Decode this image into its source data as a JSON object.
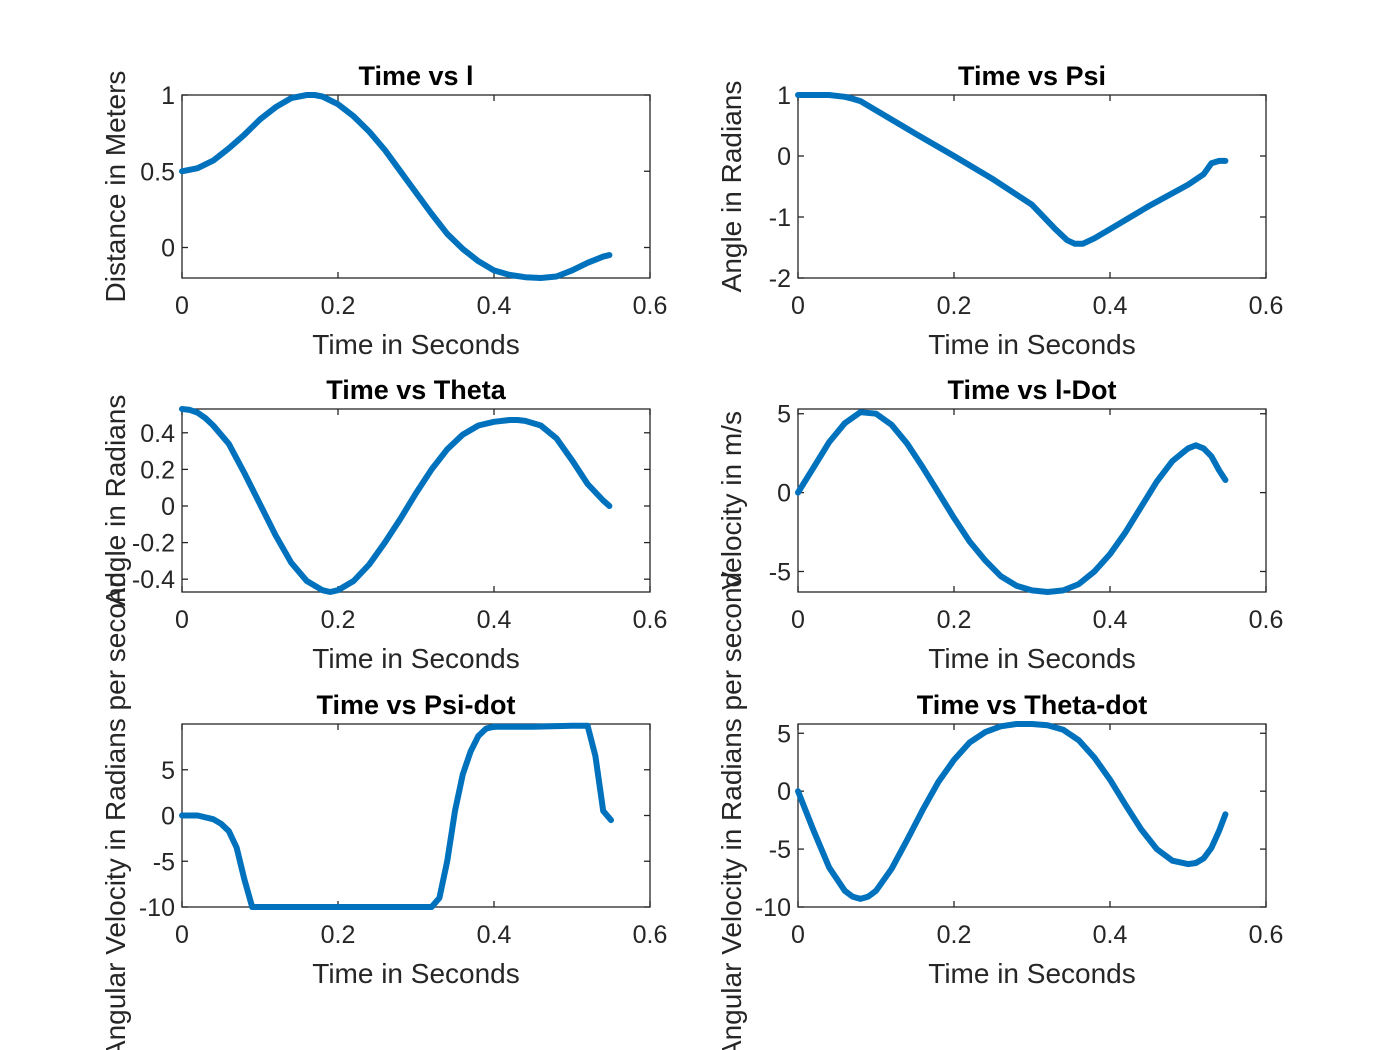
{
  "colors": {
    "series": "#0072BD",
    "axis": "#262626",
    "background": "#ffffff"
  },
  "chart_data": [
    {
      "type": "line",
      "title": "Time vs l",
      "xlabel": "Time in Seconds",
      "ylabel": "Distance in Meters",
      "xlim": [
        0,
        0.6
      ],
      "ylim": [
        -0.2,
        1.0
      ],
      "xticks": [
        0,
        0.2,
        0.4,
        0.6
      ],
      "yticks": [
        0,
        0.5,
        1
      ],
      "xtick_labels": [
        "0",
        "0.2",
        "0.4",
        "0.6"
      ],
      "ytick_labels": [
        "0",
        "0.5",
        "1"
      ],
      "grid": false,
      "series": [
        {
          "x": [
            0,
            0.02,
            0.04,
            0.06,
            0.08,
            0.1,
            0.12,
            0.14,
            0.16,
            0.17,
            0.18,
            0.2,
            0.22,
            0.24,
            0.26,
            0.28,
            0.3,
            0.32,
            0.34,
            0.36,
            0.38,
            0.4,
            0.42,
            0.44,
            0.46,
            0.48,
            0.5,
            0.52,
            0.54,
            0.548
          ],
          "y": [
            0.5,
            0.52,
            0.57,
            0.65,
            0.74,
            0.84,
            0.92,
            0.98,
            1.0,
            1.0,
            0.99,
            0.94,
            0.86,
            0.76,
            0.64,
            0.5,
            0.36,
            0.22,
            0.09,
            -0.01,
            -0.09,
            -0.15,
            -0.18,
            -0.195,
            -0.2,
            -0.19,
            -0.15,
            -0.1,
            -0.06,
            -0.05
          ]
        }
      ]
    },
    {
      "type": "line",
      "title": "Time vs Psi",
      "xlabel": "Time in Seconds",
      "ylabel": "Angle in Radians",
      "xlim": [
        0,
        0.6
      ],
      "ylim": [
        -2,
        1
      ],
      "xticks": [
        0,
        0.2,
        0.4,
        0.6
      ],
      "yticks": [
        -2,
        -1,
        0,
        1
      ],
      "xtick_labels": [
        "0",
        "0.2",
        "0.4",
        "0.6"
      ],
      "ytick_labels": [
        "-2",
        "-1",
        "0",
        "1"
      ],
      "grid": false,
      "series": [
        {
          "x": [
            0,
            0.02,
            0.04,
            0.06,
            0.07,
            0.08,
            0.1,
            0.15,
            0.2,
            0.25,
            0.3,
            0.33,
            0.345,
            0.355,
            0.365,
            0.38,
            0.4,
            0.45,
            0.5,
            0.52,
            0.53,
            0.54,
            0.548
          ],
          "y": [
            1.0,
            1.0,
            1.0,
            0.97,
            0.94,
            0.9,
            0.75,
            0.37,
            0.0,
            -0.38,
            -0.8,
            -1.2,
            -1.38,
            -1.44,
            -1.44,
            -1.35,
            -1.2,
            -0.82,
            -0.47,
            -0.3,
            -0.12,
            -0.08,
            -0.08
          ]
        }
      ]
    },
    {
      "type": "line",
      "title": "Time vs Theta",
      "xlabel": "Time in Seconds",
      "ylabel": "Angle in Radians",
      "xlim": [
        0,
        0.6
      ],
      "ylim": [
        -0.47,
        0.53
      ],
      "xticks": [
        0,
        0.2,
        0.4,
        0.6
      ],
      "yticks": [
        -0.4,
        -0.2,
        0,
        0.2,
        0.4
      ],
      "xtick_labels": [
        "0",
        "0.2",
        "0.4",
        "0.6"
      ],
      "ytick_labels": [
        "-0.4",
        "-0.2",
        "0",
        "0.2",
        "0.4"
      ],
      "grid": false,
      "series": [
        {
          "x": [
            0,
            0.01,
            0.02,
            0.03,
            0.04,
            0.06,
            0.08,
            0.1,
            0.12,
            0.14,
            0.16,
            0.18,
            0.19,
            0.2,
            0.22,
            0.24,
            0.26,
            0.28,
            0.3,
            0.32,
            0.34,
            0.36,
            0.38,
            0.4,
            0.42,
            0.43,
            0.44,
            0.46,
            0.48,
            0.5,
            0.52,
            0.54,
            0.548
          ],
          "y": [
            0.53,
            0.525,
            0.51,
            0.48,
            0.44,
            0.34,
            0.18,
            0.01,
            -0.16,
            -0.31,
            -0.41,
            -0.46,
            -0.47,
            -0.46,
            -0.41,
            -0.32,
            -0.2,
            -0.07,
            0.07,
            0.2,
            0.31,
            0.39,
            0.44,
            0.46,
            0.47,
            0.47,
            0.465,
            0.44,
            0.37,
            0.25,
            0.12,
            0.03,
            0.0
          ]
        }
      ]
    },
    {
      "type": "line",
      "title": "Time vs l-Dot",
      "xlabel": "Time in Seconds",
      "ylabel": "Velocity in m/s",
      "xlim": [
        0,
        0.6
      ],
      "ylim": [
        -6.3,
        5.3
      ],
      "xticks": [
        0,
        0.2,
        0.4,
        0.6
      ],
      "yticks": [
        -5,
        0,
        5
      ],
      "xtick_labels": [
        "0",
        "0.2",
        "0.4",
        "0.6"
      ],
      "ytick_labels": [
        "-5",
        "0",
        "5"
      ],
      "grid": false,
      "series": [
        {
          "x": [
            0,
            0.02,
            0.04,
            0.06,
            0.08,
            0.1,
            0.12,
            0.14,
            0.16,
            0.18,
            0.2,
            0.22,
            0.24,
            0.26,
            0.28,
            0.3,
            0.32,
            0.34,
            0.36,
            0.38,
            0.4,
            0.42,
            0.44,
            0.46,
            0.48,
            0.5,
            0.51,
            0.52,
            0.53,
            0.54,
            0.548
          ],
          "y": [
            0.0,
            1.6,
            3.2,
            4.4,
            5.1,
            5.0,
            4.3,
            3.1,
            1.6,
            0.0,
            -1.6,
            -3.1,
            -4.3,
            -5.3,
            -5.9,
            -6.2,
            -6.3,
            -6.2,
            -5.8,
            -5.0,
            -3.9,
            -2.5,
            -0.9,
            0.7,
            2.0,
            2.8,
            3.0,
            2.8,
            2.3,
            1.4,
            0.8
          ]
        }
      ]
    },
    {
      "type": "line",
      "title": "Time vs Psi-dot",
      "xlabel": "Time in Seconds",
      "ylabel": "Angular Velocity in Radians per second",
      "xlim": [
        0,
        0.6
      ],
      "ylim": [
        -10,
        10
      ],
      "xticks": [
        0,
        0.2,
        0.4,
        0.6
      ],
      "yticks": [
        -10,
        -5,
        0,
        5
      ],
      "xtick_labels": [
        "0",
        "0.2",
        "0.4",
        "0.6"
      ],
      "ytick_labels": [
        "-10",
        "-5",
        "0",
        "5"
      ],
      "grid": false,
      "series": [
        {
          "x": [
            0,
            0.02,
            0.04,
            0.05,
            0.06,
            0.07,
            0.08,
            0.09,
            0.1,
            0.15,
            0.2,
            0.25,
            0.3,
            0.32,
            0.33,
            0.34,
            0.35,
            0.36,
            0.37,
            0.38,
            0.39,
            0.4,
            0.42,
            0.45,
            0.5,
            0.52,
            0.53,
            0.54,
            0.55
          ],
          "y": [
            0.0,
            0.0,
            -0.4,
            -0.9,
            -1.7,
            -3.5,
            -7.0,
            -10.0,
            -10.0,
            -10.0,
            -10.0,
            -10.0,
            -10.0,
            -10.0,
            -9.0,
            -5.0,
            0.5,
            4.5,
            7.0,
            8.7,
            9.5,
            9.7,
            9.7,
            9.7,
            9.8,
            9.8,
            6.5,
            0.5,
            -0.5
          ]
        }
      ]
    },
    {
      "type": "line",
      "title": "Time vs Theta-dot",
      "xlabel": "Time in Seconds",
      "ylabel": "Angular Velocity in Radians per second",
      "xlim": [
        0,
        0.6
      ],
      "ylim": [
        -10,
        5.8
      ],
      "xticks": [
        0,
        0.2,
        0.4,
        0.6
      ],
      "yticks": [
        -10,
        -5,
        0,
        5
      ],
      "xtick_labels": [
        "0",
        "0.2",
        "0.4",
        "0.6"
      ],
      "ytick_labels": [
        "-10",
        "-5",
        "0",
        "5"
      ],
      "grid": false,
      "series": [
        {
          "x": [
            0,
            0.02,
            0.04,
            0.06,
            0.07,
            0.08,
            0.09,
            0.1,
            0.12,
            0.14,
            0.16,
            0.18,
            0.2,
            0.22,
            0.24,
            0.26,
            0.28,
            0.3,
            0.32,
            0.34,
            0.36,
            0.38,
            0.4,
            0.42,
            0.44,
            0.46,
            0.48,
            0.5,
            0.51,
            0.52,
            0.53,
            0.54,
            0.548
          ],
          "y": [
            0.0,
            -3.4,
            -6.6,
            -8.6,
            -9.1,
            -9.3,
            -9.1,
            -8.6,
            -6.7,
            -4.2,
            -1.6,
            0.8,
            2.7,
            4.2,
            5.1,
            5.6,
            5.8,
            5.8,
            5.7,
            5.3,
            4.4,
            2.9,
            1.0,
            -1.2,
            -3.3,
            -5.0,
            -6.0,
            -6.3,
            -6.2,
            -5.8,
            -4.9,
            -3.4,
            -2.0
          ]
        }
      ]
    }
  ]
}
